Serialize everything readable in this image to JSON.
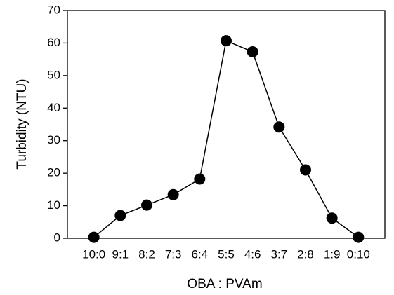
{
  "chart_data": {
    "type": "line",
    "x_label": "OBA : PVAm",
    "y_label": "Turbidity (NTU)",
    "categories": [
      "10:0",
      "9:1",
      "8:2",
      "7:3",
      "6:4",
      "5:5",
      "4:6",
      "3:7",
      "2:8",
      "1:9",
      "0:10"
    ],
    "series": [
      {
        "name": "Turbidity",
        "color": "#000000",
        "values": [
          0.3,
          7,
          10.2,
          13.4,
          18.2,
          60.7,
          57.3,
          34.2,
          21,
          6.2,
          0.3
        ]
      }
    ],
    "ylim": [
      0,
      70
    ],
    "yticks": [
      0,
      10,
      20,
      30,
      40,
      50,
      60,
      70
    ],
    "grid": false
  }
}
